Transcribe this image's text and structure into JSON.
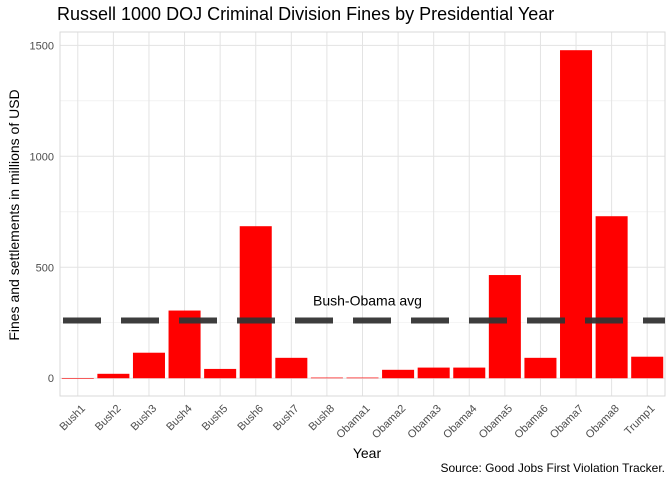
{
  "chart_data": {
    "type": "bar",
    "title": "Russell 1000 DOJ Criminal Division Fines by Presidential Year",
    "xlabel": "Year",
    "ylabel": "Fines and settlements in millions of USD",
    "caption": "Source: Good Jobs First Violation Tracker.",
    "categories": [
      "Bush1",
      "Bush2",
      "Bush3",
      "Bush4",
      "Bush5",
      "Bush6",
      "Bush7",
      "Bush8",
      "Obama1",
      "Obama2",
      "Obama3",
      "Obama4",
      "Obama5",
      "Obama6",
      "Obama7",
      "Obama8",
      "Trump1"
    ],
    "values": [
      0,
      20,
      115,
      305,
      42,
      685,
      92,
      3,
      3,
      38,
      48,
      48,
      465,
      92,
      1478,
      730,
      97
    ],
    "ylim": [
      -80,
      1560
    ],
    "yticks": [
      0,
      500,
      1000,
      1500
    ],
    "reference_line": {
      "value": 260,
      "label": "Bush-Obama avg",
      "style": "dashed",
      "color": "#333333"
    },
    "bar_color": "#ff0000",
    "grid": true,
    "legend": "none"
  }
}
